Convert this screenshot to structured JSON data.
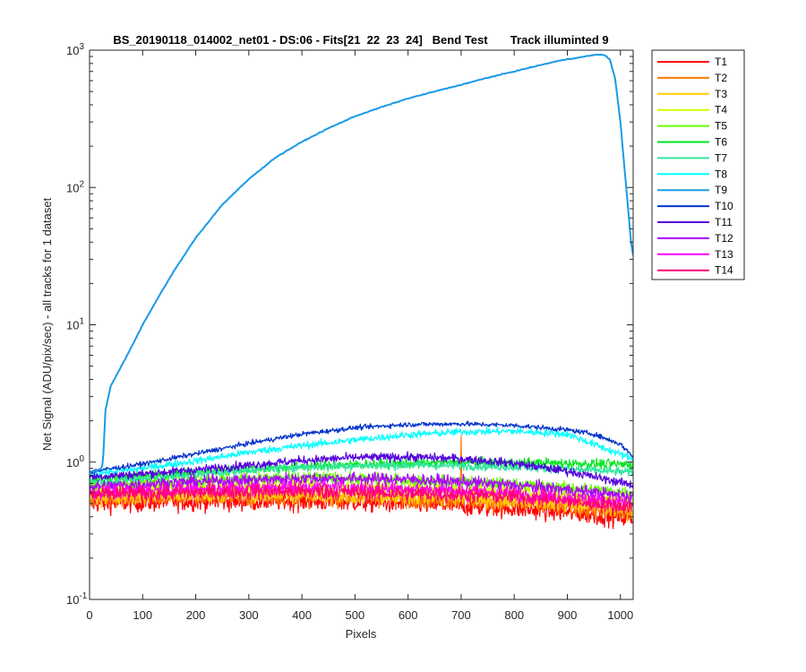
{
  "chart_data": {
    "type": "line",
    "title": "BS_20190118_014002_net01 - DS:06 - Fits[21  22  23  24]   Bend Test       Track illuminted 9",
    "xlabel": "Pixels",
    "ylabel": "Net Signal (ADU/pix/sec) - all tracks for 1 dataset",
    "xlim": [
      0,
      1024
    ],
    "ylim": [
      0.1,
      1000
    ],
    "yscale": "log",
    "x_ticks": [
      "0",
      "100",
      "200",
      "300",
      "400",
      "500",
      "600",
      "700",
      "800",
      "900",
      "1000"
    ],
    "x_tick_values": [
      0,
      100,
      200,
      300,
      400,
      500,
      600,
      700,
      800,
      900,
      1000
    ],
    "y_ticks": [
      {
        "value": 0.1,
        "base": "10",
        "exp": "-1"
      },
      {
        "value": 1,
        "base": "10",
        "exp": "0"
      },
      {
        "value": 10,
        "base": "10",
        "exp": "1"
      },
      {
        "value": 100,
        "base": "10",
        "exp": "2"
      },
      {
        "value": 1000,
        "base": "10",
        "exp": "3"
      }
    ],
    "grid": false,
    "legend_position": "outside-right",
    "series": [
      {
        "name": "T1",
        "color": "#ff0000",
        "x": [
          0,
          100,
          200,
          300,
          400,
          500,
          600,
          700,
          800,
          900,
          1024
        ],
        "y": [
          0.5,
          0.51,
          0.52,
          0.52,
          0.52,
          0.51,
          0.5,
          0.48,
          0.46,
          0.43,
          0.39
        ]
      },
      {
        "name": "T2",
        "color": "#ff7a00",
        "x": [
          0,
          100,
          200,
          300,
          400,
          500,
          600,
          698,
          700,
          702,
          800,
          900,
          1024
        ],
        "y": [
          0.54,
          0.55,
          0.56,
          0.56,
          0.56,
          0.55,
          0.54,
          0.53,
          1.55,
          0.53,
          0.5,
          0.47,
          0.42
        ]
      },
      {
        "name": "T3",
        "color": "#ffcc00",
        "x": [
          0,
          100,
          200,
          300,
          400,
          500,
          600,
          700,
          800,
          900,
          1024
        ],
        "y": [
          0.56,
          0.57,
          0.58,
          0.58,
          0.58,
          0.57,
          0.56,
          0.55,
          0.53,
          0.5,
          0.45
        ]
      },
      {
        "name": "T4",
        "color": "#ccff00",
        "x": [
          0,
          100,
          200,
          300,
          400,
          500,
          600,
          700,
          800,
          900,
          1024
        ],
        "y": [
          0.62,
          0.64,
          0.66,
          0.67,
          0.67,
          0.66,
          0.65,
          0.63,
          0.6,
          0.57,
          0.52
        ]
      },
      {
        "name": "T5",
        "color": "#66ff00",
        "x": [
          0,
          100,
          200,
          300,
          400,
          500,
          600,
          700,
          800,
          900,
          1024
        ],
        "y": [
          0.68,
          0.71,
          0.74,
          0.76,
          0.77,
          0.76,
          0.74,
          0.72,
          0.69,
          0.65,
          0.6
        ]
      },
      {
        "name": "T6",
        "color": "#00e61f",
        "x": [
          0,
          100,
          200,
          300,
          400,
          500,
          600,
          700,
          800,
          900,
          1024
        ],
        "y": [
          0.74,
          0.78,
          0.84,
          0.89,
          0.93,
          0.96,
          0.98,
          0.99,
          0.99,
          0.98,
          0.96
        ]
      },
      {
        "name": "T7",
        "color": "#33e6a0",
        "x": [
          0,
          100,
          200,
          300,
          400,
          500,
          600,
          700,
          800,
          900,
          1024
        ],
        "y": [
          0.72,
          0.76,
          0.82,
          0.88,
          0.92,
          0.94,
          0.95,
          0.94,
          0.92,
          0.89,
          0.84
        ]
      },
      {
        "name": "T8",
        "color": "#00ffff",
        "x": [
          0,
          100,
          200,
          300,
          400,
          500,
          600,
          700,
          800,
          900,
          1024
        ],
        "y": [
          0.82,
          0.9,
          1.02,
          1.18,
          1.32,
          1.45,
          1.58,
          1.66,
          1.68,
          1.6,
          1.05
        ]
      },
      {
        "name": "T9",
        "color": "#1a9ae6",
        "x": [
          0,
          20,
          25,
          30,
          40,
          60,
          80,
          100,
          130,
          160,
          200,
          250,
          300,
          350,
          400,
          450,
          500,
          550,
          600,
          650,
          700,
          750,
          800,
          850,
          880,
          900,
          920,
          940,
          960,
          970,
          980,
          990,
          1000,
          1010,
          1020,
          1024
        ],
        "y": [
          0.85,
          0.88,
          0.95,
          2.4,
          3.6,
          5.0,
          7.0,
          10,
          16,
          25,
          43,
          75,
          115,
          165,
          215,
          270,
          330,
          385,
          445,
          500,
          560,
          630,
          700,
          780,
          830,
          860,
          880,
          910,
          930,
          920,
          860,
          620,
          300,
          110,
          40,
          32
        ]
      },
      {
        "name": "T10",
        "color": "#0033cc",
        "x": [
          0,
          100,
          200,
          300,
          400,
          500,
          600,
          700,
          800,
          900,
          950,
          1000,
          1024
        ],
        "y": [
          0.85,
          0.97,
          1.15,
          1.37,
          1.6,
          1.78,
          1.88,
          1.9,
          1.85,
          1.72,
          1.6,
          1.35,
          1.1
        ]
      },
      {
        "name": "T11",
        "color": "#5500dd",
        "x": [
          0,
          100,
          200,
          300,
          400,
          500,
          600,
          700,
          800,
          900,
          1024
        ],
        "y": [
          0.78,
          0.82,
          0.88,
          0.95,
          1.03,
          1.08,
          1.09,
          1.06,
          0.98,
          0.86,
          0.68
        ]
      },
      {
        "name": "T12",
        "color": "#aa00ff",
        "x": [
          0,
          100,
          200,
          300,
          400,
          500,
          600,
          700,
          800,
          900,
          1024
        ],
        "y": [
          0.66,
          0.69,
          0.72,
          0.74,
          0.76,
          0.76,
          0.75,
          0.72,
          0.68,
          0.63,
          0.56
        ]
      },
      {
        "name": "T13",
        "color": "#ff00ff",
        "x": [
          0,
          100,
          200,
          300,
          400,
          500,
          600,
          700,
          800,
          900,
          1024
        ],
        "y": [
          0.6,
          0.62,
          0.64,
          0.65,
          0.66,
          0.65,
          0.64,
          0.62,
          0.59,
          0.55,
          0.5
        ]
      },
      {
        "name": "T14",
        "color": "#ff0077",
        "x": [
          0,
          100,
          200,
          300,
          400,
          500,
          600,
          700,
          800,
          900,
          1024
        ],
        "y": [
          0.58,
          0.59,
          0.6,
          0.61,
          0.61,
          0.6,
          0.59,
          0.58,
          0.56,
          0.52,
          0.47
        ]
      }
    ]
  }
}
